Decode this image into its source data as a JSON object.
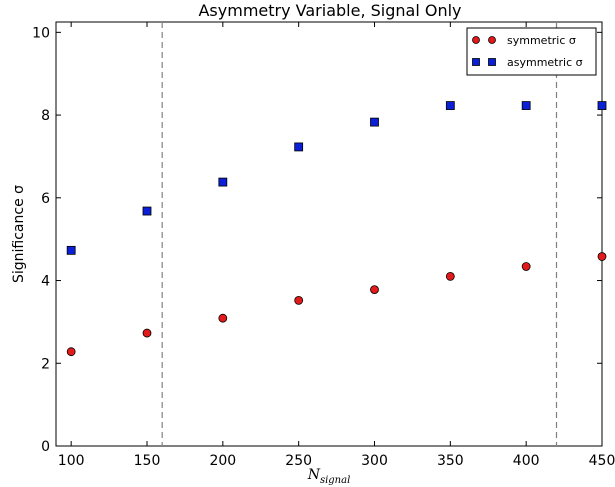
{
  "chart_data": {
    "type": "scatter",
    "title": "Asymmetry Variable, Signal Only",
    "xlabel_main": "N",
    "xlabel_sub": "signal",
    "ylabel": "Significance σ",
    "xlim": [
      90,
      450
    ],
    "ylim": [
      0,
      10.25
    ],
    "xticks": [
      100,
      150,
      200,
      250,
      300,
      350,
      400,
      450
    ],
    "yticks": [
      0,
      2,
      4,
      6,
      8,
      10
    ],
    "vlines": [
      160,
      420
    ],
    "grid": false,
    "legend_position": "top-right",
    "series": [
      {
        "name": "symmetric σ",
        "marker": "circle",
        "color": "#e31a1c",
        "x": [
          100,
          150,
          200,
          250,
          300,
          350,
          400,
          450
        ],
        "y": [
          2.28,
          2.73,
          3.09,
          3.52,
          3.78,
          4.1,
          4.34,
          4.58
        ]
      },
      {
        "name": "asymmetric σ",
        "marker": "square",
        "color": "#0a1fd6",
        "x": [
          100,
          150,
          200,
          250,
          300,
          350,
          400,
          450
        ],
        "y": [
          4.73,
          5.68,
          6.38,
          7.23,
          7.83,
          8.23,
          8.23,
          8.23
        ]
      }
    ]
  }
}
